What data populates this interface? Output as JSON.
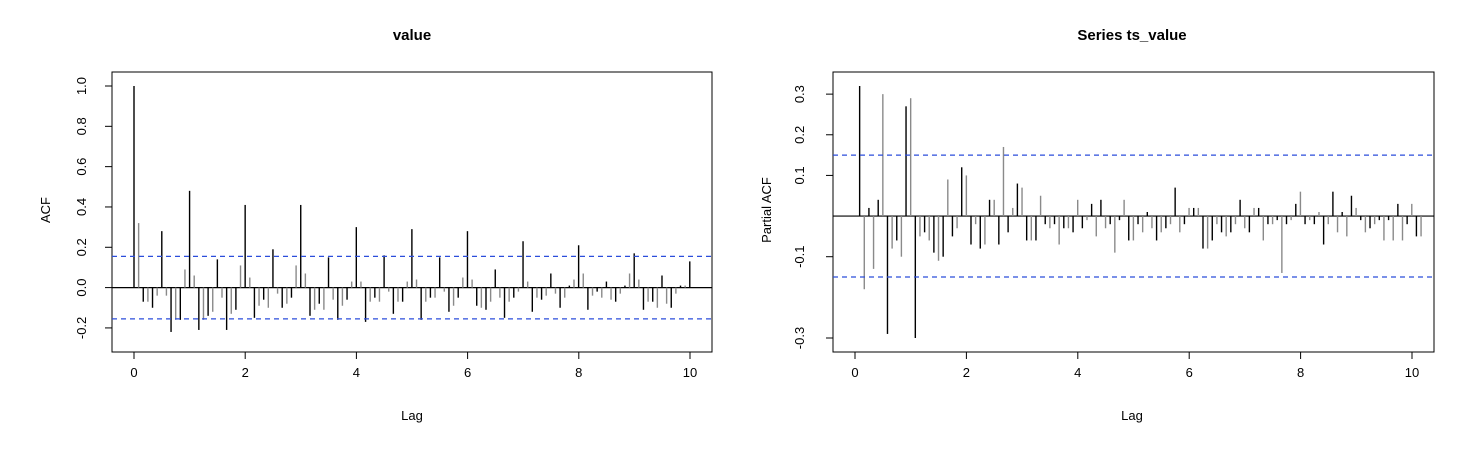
{
  "chart_data": [
    {
      "type": "acf",
      "title": "value",
      "xlabel": "Lag",
      "ylabel": "ACF",
      "xlim": [
        0,
        10
      ],
      "ylim": [
        -0.25,
        1.0
      ],
      "x_ticks": [
        0,
        2,
        4,
        6,
        8,
        10
      ],
      "y_ticks": [
        -0.2,
        0.0,
        0.2,
        0.4,
        0.6,
        0.8,
        1.0
      ],
      "x_tick_labels": [
        "0",
        "2",
        "4",
        "6",
        "8",
        "10"
      ],
      "y_tick_labels": [
        "-0.2",
        "0.0",
        "0.2",
        "0.4",
        "0.6",
        "0.8",
        "1.0"
      ],
      "confidence_bound": 0.155,
      "lag_step": 0.0833,
      "values": [
        1.0,
        0.32,
        -0.07,
        -0.07,
        -0.1,
        -0.04,
        0.28,
        -0.04,
        -0.22,
        -0.16,
        -0.16,
        0.09,
        0.48,
        0.06,
        -0.21,
        -0.16,
        -0.14,
        -0.12,
        0.14,
        -0.05,
        -0.21,
        -0.13,
        -0.11,
        0.11,
        0.41,
        0.05,
        -0.15,
        -0.09,
        -0.06,
        -0.1,
        0.19,
        -0.03,
        -0.1,
        -0.08,
        -0.05,
        0.11,
        0.41,
        0.07,
        -0.14,
        -0.11,
        -0.08,
        -0.11,
        0.15,
        -0.06,
        -0.16,
        -0.09,
        -0.06,
        0.03,
        0.3,
        0.03,
        -0.17,
        -0.07,
        -0.05,
        -0.07,
        0.16,
        -0.02,
        -0.13,
        -0.07,
        -0.07,
        0.03,
        0.29,
        0.04,
        -0.16,
        -0.07,
        -0.05,
        -0.05,
        0.15,
        -0.02,
        -0.12,
        -0.09,
        -0.05,
        0.05,
        0.28,
        0.04,
        -0.09,
        -0.1,
        -0.11,
        -0.07,
        0.09,
        -0.05,
        -0.15,
        -0.07,
        -0.05,
        -0.02,
        0.23,
        0.03,
        -0.12,
        -0.05,
        -0.06,
        -0.04,
        0.07,
        -0.03,
        -0.1,
        -0.05,
        0.01,
        0.04,
        0.21,
        0.07,
        -0.11,
        -0.04,
        -0.02,
        -0.05,
        0.03,
        -0.06,
        -0.07,
        -0.03,
        0.01,
        0.07,
        0.17,
        0.04,
        -0.11,
        -0.07,
        -0.07,
        -0.1,
        0.06,
        -0.08,
        -0.1,
        -0.03,
        0.01,
        0.01,
        0.13
      ]
    },
    {
      "type": "pacf",
      "title": "Series  ts_value",
      "xlabel": "Lag",
      "ylabel": "Partial ACF",
      "xlim": [
        0,
        10
      ],
      "ylim": [
        -0.3,
        0.32
      ],
      "x_ticks": [
        0,
        2,
        4,
        6,
        8,
        10
      ],
      "y_ticks": [
        -0.3,
        -0.1,
        0.1,
        0.2,
        0.3
      ],
      "x_tick_labels": [
        "0",
        "2",
        "4",
        "6",
        "8",
        "10"
      ],
      "y_tick_labels": [
        "-0.3",
        "-0.1",
        "0.1",
        "0.2",
        "0.3"
      ],
      "confidence_bound": 0.15,
      "lag_step": 0.0833,
      "values": [
        0.32,
        -0.18,
        0.02,
        -0.13,
        0.04,
        0.3,
        -0.29,
        -0.08,
        -0.06,
        -0.1,
        0.27,
        0.29,
        -0.3,
        -0.05,
        -0.04,
        -0.06,
        -0.09,
        -0.11,
        -0.1,
        0.09,
        -0.05,
        -0.03,
        0.12,
        0.1,
        -0.07,
        -0.02,
        -0.08,
        -0.07,
        0.04,
        0.04,
        -0.07,
        0.17,
        -0.04,
        0.02,
        0.08,
        0.07,
        -0.06,
        -0.06,
        -0.06,
        0.05,
        -0.02,
        -0.03,
        -0.02,
        -0.07,
        -0.03,
        -0.03,
        -0.04,
        0.04,
        -0.03,
        -0.01,
        0.03,
        -0.05,
        0.04,
        -0.03,
        -0.02,
        -0.09,
        -0.01,
        0.04,
        -0.06,
        -0.06,
        -0.02,
        -0.04,
        0.01,
        -0.03,
        -0.06,
        -0.04,
        -0.03,
        -0.02,
        0.07,
        -0.04,
        -0.02,
        0.02,
        0.02,
        0.02,
        -0.08,
        -0.08,
        -0.06,
        -0.02,
        -0.04,
        -0.05,
        -0.04,
        -0.02,
        0.04,
        -0.03,
        -0.04,
        0.02,
        0.02,
        -0.06,
        -0.02,
        -0.02,
        -0.01,
        -0.14,
        -0.02,
        -0.01,
        0.03,
        0.06,
        -0.02,
        -0.01,
        -0.02,
        0.01,
        -0.07,
        -0.02,
        0.06,
        -0.04,
        0.01,
        -0.05,
        0.05,
        0.02,
        -0.01,
        -0.04,
        -0.03,
        -0.02,
        -0.01,
        -0.06,
        -0.01,
        -0.06,
        0.03,
        -0.06,
        -0.02,
        0.03,
        -0.05,
        -0.05
      ]
    }
  ]
}
